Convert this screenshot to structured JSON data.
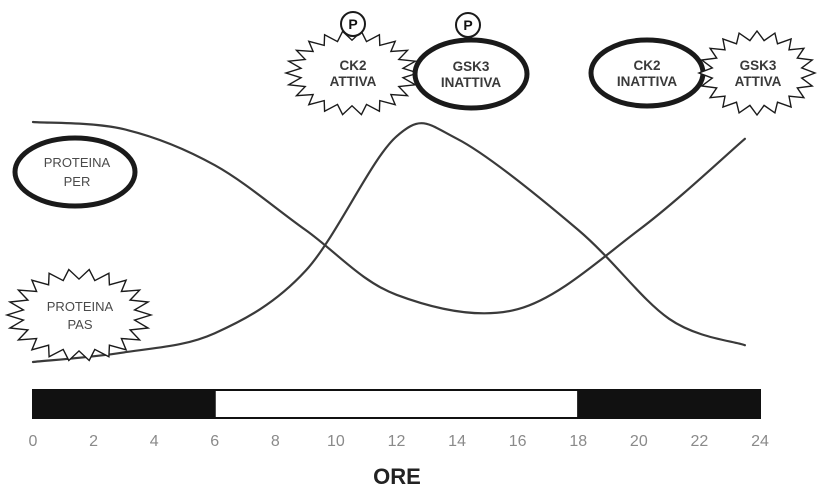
{
  "labels": {
    "proteina_per": {
      "line1": "PROTEINA",
      "line2": "PER"
    },
    "proteina_pas": {
      "line1": "PROTEINA",
      "line2": "PAS"
    },
    "ck2_attiva": {
      "line1": "CK2",
      "line2": "ATTIVA",
      "phospho": "P"
    },
    "gsk3_inattiva": {
      "line1": "GSK3",
      "line2": "INATTIVA",
      "phospho": "P"
    },
    "ck2_inattiva": {
      "line1": "CK2",
      "line2": "INATTIVA"
    },
    "gsk3_attiva": {
      "line1": "GSK3",
      "line2": "ATTIVA"
    }
  },
  "axis": {
    "title": "ORE",
    "ticks": [
      "0",
      "2",
      "4",
      "6",
      "8",
      "10",
      "12",
      "14",
      "16",
      "18",
      "20",
      "22",
      "24"
    ]
  },
  "day_night_bar": [
    {
      "from": 0,
      "to": 6,
      "state": "dark"
    },
    {
      "from": 6,
      "to": 18,
      "state": "light"
    },
    {
      "from": 18,
      "to": 24,
      "state": "dark"
    }
  ],
  "curves": {
    "per": {
      "x": [
        0,
        3,
        6,
        9,
        12,
        16,
        20,
        23.5
      ],
      "y": [
        1.0,
        0.97,
        0.82,
        0.55,
        0.28,
        0.22,
        0.55,
        0.93
      ]
    },
    "pas": {
      "x": [
        0,
        3,
        6,
        9,
        12,
        14,
        18,
        21,
        23.5
      ],
      "y": [
        0.0,
        0.04,
        0.12,
        0.38,
        0.94,
        0.93,
        0.55,
        0.18,
        0.07
      ]
    }
  },
  "colors": {
    "curve": "#3a3a3a",
    "outline": "#1a1a1a",
    "dark_bar": "#111111",
    "light_bar": "#ffffff"
  }
}
